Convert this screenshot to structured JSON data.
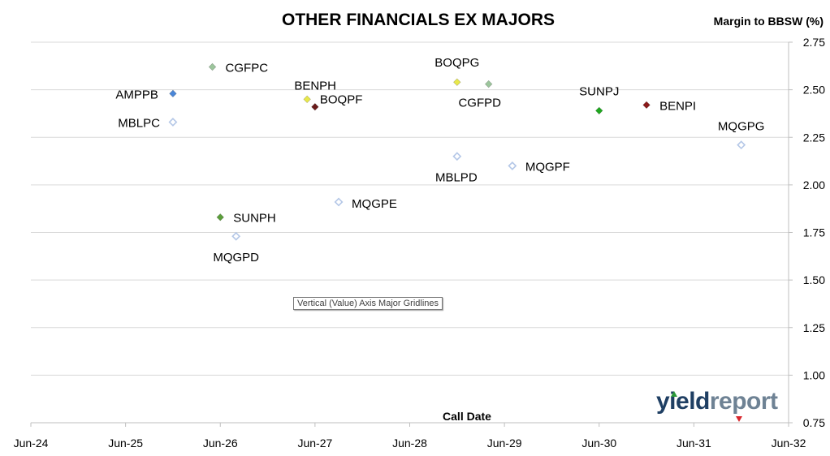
{
  "chart_data": {
    "type": "scatter",
    "title": "OTHER FINANCIALS EX MAJORS",
    "xlabel": "Call Date",
    "ylabel": "Margin to BBSW (%)",
    "x_ticks": [
      "Jun-24",
      "Jun-25",
      "Jun-26",
      "Jun-27",
      "Jun-28",
      "Jun-29",
      "Jun-30",
      "Jun-31",
      "Jun-32"
    ],
    "y_ticks": [
      "0.75",
      "1.00",
      "1.25",
      "1.50",
      "1.75",
      "2.00",
      "2.25",
      "2.50",
      "2.75"
    ],
    "xlim": [
      "2024-06",
      "2032-06"
    ],
    "ylim": [
      0.75,
      2.75
    ],
    "grid": "horizontal",
    "y_axis_position": "right",
    "points": [
      {
        "label": "AMPPB",
        "x": "2025-12",
        "y": 2.48,
        "color": "#4a86d8",
        "filled": true
      },
      {
        "label": "MBLPC",
        "x": "2025-12",
        "y": 2.33,
        "color": "#b4c7e7",
        "filled": false
      },
      {
        "label": "CGFPC",
        "x": "2026-05",
        "y": 2.62,
        "color": "#9cc59c",
        "filled": true
      },
      {
        "label": "SUNPH",
        "x": "2026-06",
        "y": 1.83,
        "color": "#5b9e3a",
        "filled": true
      },
      {
        "label": "MQGPD",
        "x": "2026-08",
        "y": 1.73,
        "color": "#b4c7e7",
        "filled": false
      },
      {
        "label": "BENPH",
        "x": "2027-05",
        "y": 2.45,
        "color": "#e8e84a",
        "filled": true
      },
      {
        "label": "BOQPF",
        "x": "2027-06",
        "y": 2.41,
        "color": "#6a1b1b",
        "filled": true
      },
      {
        "label": "MQGPE",
        "x": "2027-09",
        "y": 1.91,
        "color": "#b4c7e7",
        "filled": false
      },
      {
        "label": "MBLPD",
        "x": "2028-12",
        "y": 2.15,
        "color": "#b4c7e7",
        "filled": false
      },
      {
        "label": "BOQPG",
        "x": "2028-12",
        "y": 2.54,
        "color": "#e8e84a",
        "filled": true
      },
      {
        "label": "CGFPD",
        "x": "2029-04",
        "y": 2.53,
        "color": "#9cc59c",
        "filled": true
      },
      {
        "label": "MQGPF",
        "x": "2029-07",
        "y": 2.1,
        "color": "#b4c7e7",
        "filled": false
      },
      {
        "label": "SUNPJ",
        "x": "2030-06",
        "y": 2.39,
        "color": "#1fa81f",
        "filled": true
      },
      {
        "label": "BENPI",
        "x": "2030-12",
        "y": 2.42,
        "color": "#8b1a1a",
        "filled": true
      },
      {
        "label": "MQGPG",
        "x": "2031-12",
        "y": 2.21,
        "color": "#b4c7e7",
        "filled": false
      }
    ]
  },
  "tooltip": "Vertical (Value) Axis Major Gridlines",
  "logo": {
    "part1": "yield",
    "part2": "report"
  }
}
